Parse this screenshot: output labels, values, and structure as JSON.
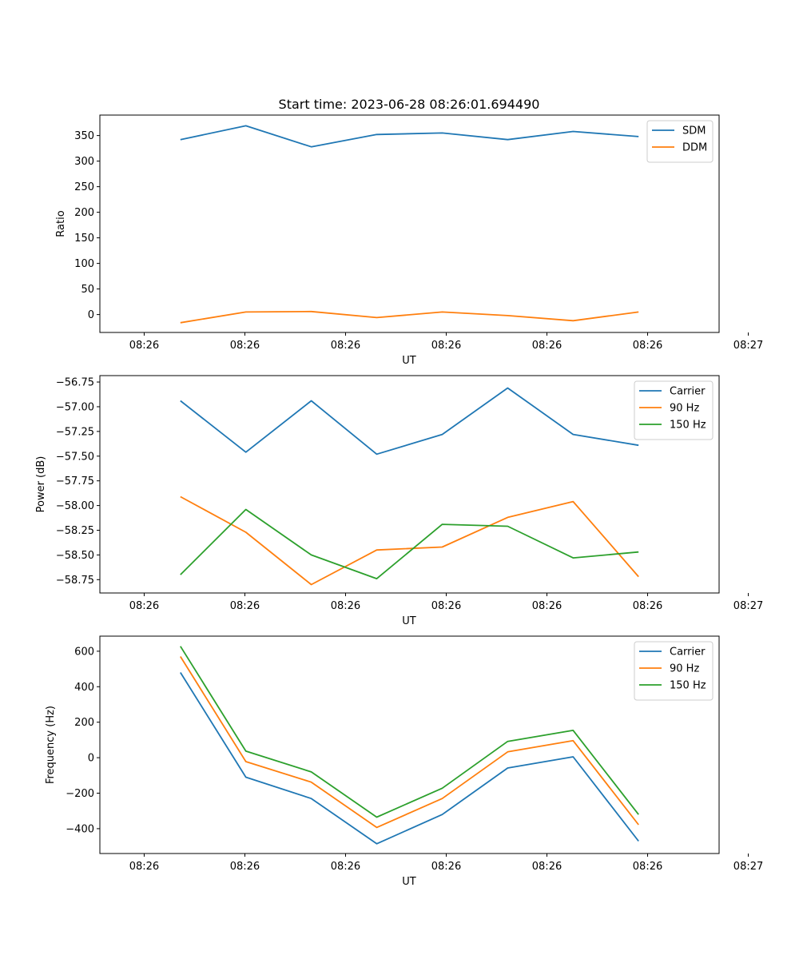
{
  "figure": {
    "title": "Start time: 2023-06-28 08:26:01.694490"
  },
  "chart_data": [
    {
      "type": "line",
      "title": "Start time: 2023-06-28 08:26:01.694490",
      "xlabel": "UT",
      "ylabel": "Ratio",
      "x_tick_labels": [
        "08:26",
        "08:26",
        "08:26",
        "08:26",
        "08:26",
        "08:26",
        "08:26"
      ],
      "x_tick_last_label": "08:27",
      "ylim": [
        -35,
        390
      ],
      "y_ticks": [
        0,
        50,
        100,
        150,
        200,
        250,
        300,
        350
      ],
      "y_tick_labels": [
        "0",
        "50",
        "100",
        "150",
        "200",
        "250",
        "300",
        "350"
      ],
      "legend_position": "top-right",
      "x": [
        0.5,
        1.15,
        1.8,
        2.45,
        3.1,
        3.75,
        4.4,
        5.05
      ],
      "series": [
        {
          "name": "SDM",
          "color": "#1f77b4",
          "values": [
            342,
            369,
            328,
            352,
            355,
            342,
            358,
            348
          ]
        },
        {
          "name": "DDM",
          "color": "#ff7f0e",
          "values": [
            -16,
            5,
            6,
            -6,
            5,
            -2,
            -12,
            5
          ]
        }
      ]
    },
    {
      "type": "line",
      "xlabel": "UT",
      "ylabel": "Power (dB)",
      "x_tick_labels": [
        "08:26",
        "08:26",
        "08:26",
        "08:26",
        "08:26",
        "08:26",
        "08:26"
      ],
      "x_tick_last_label": "08:27",
      "ylim": [
        -58.885,
        -56.685
      ],
      "y_ticks": [
        -58.75,
        -58.5,
        -58.25,
        -58.0,
        -57.75,
        -57.5,
        -57.25,
        -57.0,
        -56.75
      ],
      "y_tick_labels": [
        "−58.75",
        "−58.50",
        "−58.25",
        "−58.00",
        "−57.75",
        "−57.50",
        "−57.25",
        "−57.00",
        "−56.75"
      ],
      "legend_position": "top-right",
      "x": [
        0.5,
        1.15,
        1.8,
        2.45,
        3.1,
        3.75,
        4.4,
        5.05
      ],
      "series": [
        {
          "name": "Carrier",
          "color": "#1f77b4",
          "values": [
            -56.94,
            -57.46,
            -56.94,
            -57.48,
            -57.28,
            -56.81,
            -57.28,
            -57.39
          ]
        },
        {
          "name": "90 Hz",
          "color": "#ff7f0e",
          "values": [
            -57.91,
            -58.27,
            -58.8,
            -58.45,
            -58.42,
            -58.12,
            -57.96,
            -58.72
          ]
        },
        {
          "name": "150 Hz",
          "color": "#2ca02c",
          "values": [
            -58.7,
            -58.04,
            -58.5,
            -58.74,
            -58.19,
            -58.21,
            -58.53,
            -58.47
          ]
        }
      ]
    },
    {
      "type": "line",
      "xlabel": "UT",
      "ylabel": "Frequency (Hz)",
      "x_tick_labels": [
        "08:26",
        "08:26",
        "08:26",
        "08:26",
        "08:26",
        "08:26",
        "08:26"
      ],
      "x_tick_last_label": "08:27",
      "ylim": [
        -540,
        685
      ],
      "y_ticks": [
        -400,
        -200,
        0,
        200,
        400,
        600
      ],
      "y_tick_labels": [
        "−400",
        "−200",
        "0",
        "200",
        "400",
        "600"
      ],
      "legend_position": "top-right",
      "x": [
        0.5,
        1.15,
        1.8,
        2.45,
        3.1,
        3.75,
        4.4,
        5.05
      ],
      "series": [
        {
          "name": "Carrier",
          "color": "#1f77b4",
          "values": [
            480,
            -110,
            -230,
            -485,
            -320,
            -58,
            5,
            -470
          ]
        },
        {
          "name": "90 Hz",
          "color": "#ff7f0e",
          "values": [
            570,
            -22,
            -138,
            -393,
            -230,
            33,
            96,
            -378
          ]
        },
        {
          "name": "150 Hz",
          "color": "#2ca02c",
          "values": [
            628,
            37,
            -80,
            -335,
            -172,
            92,
            154,
            -320
          ]
        }
      ]
    }
  ]
}
